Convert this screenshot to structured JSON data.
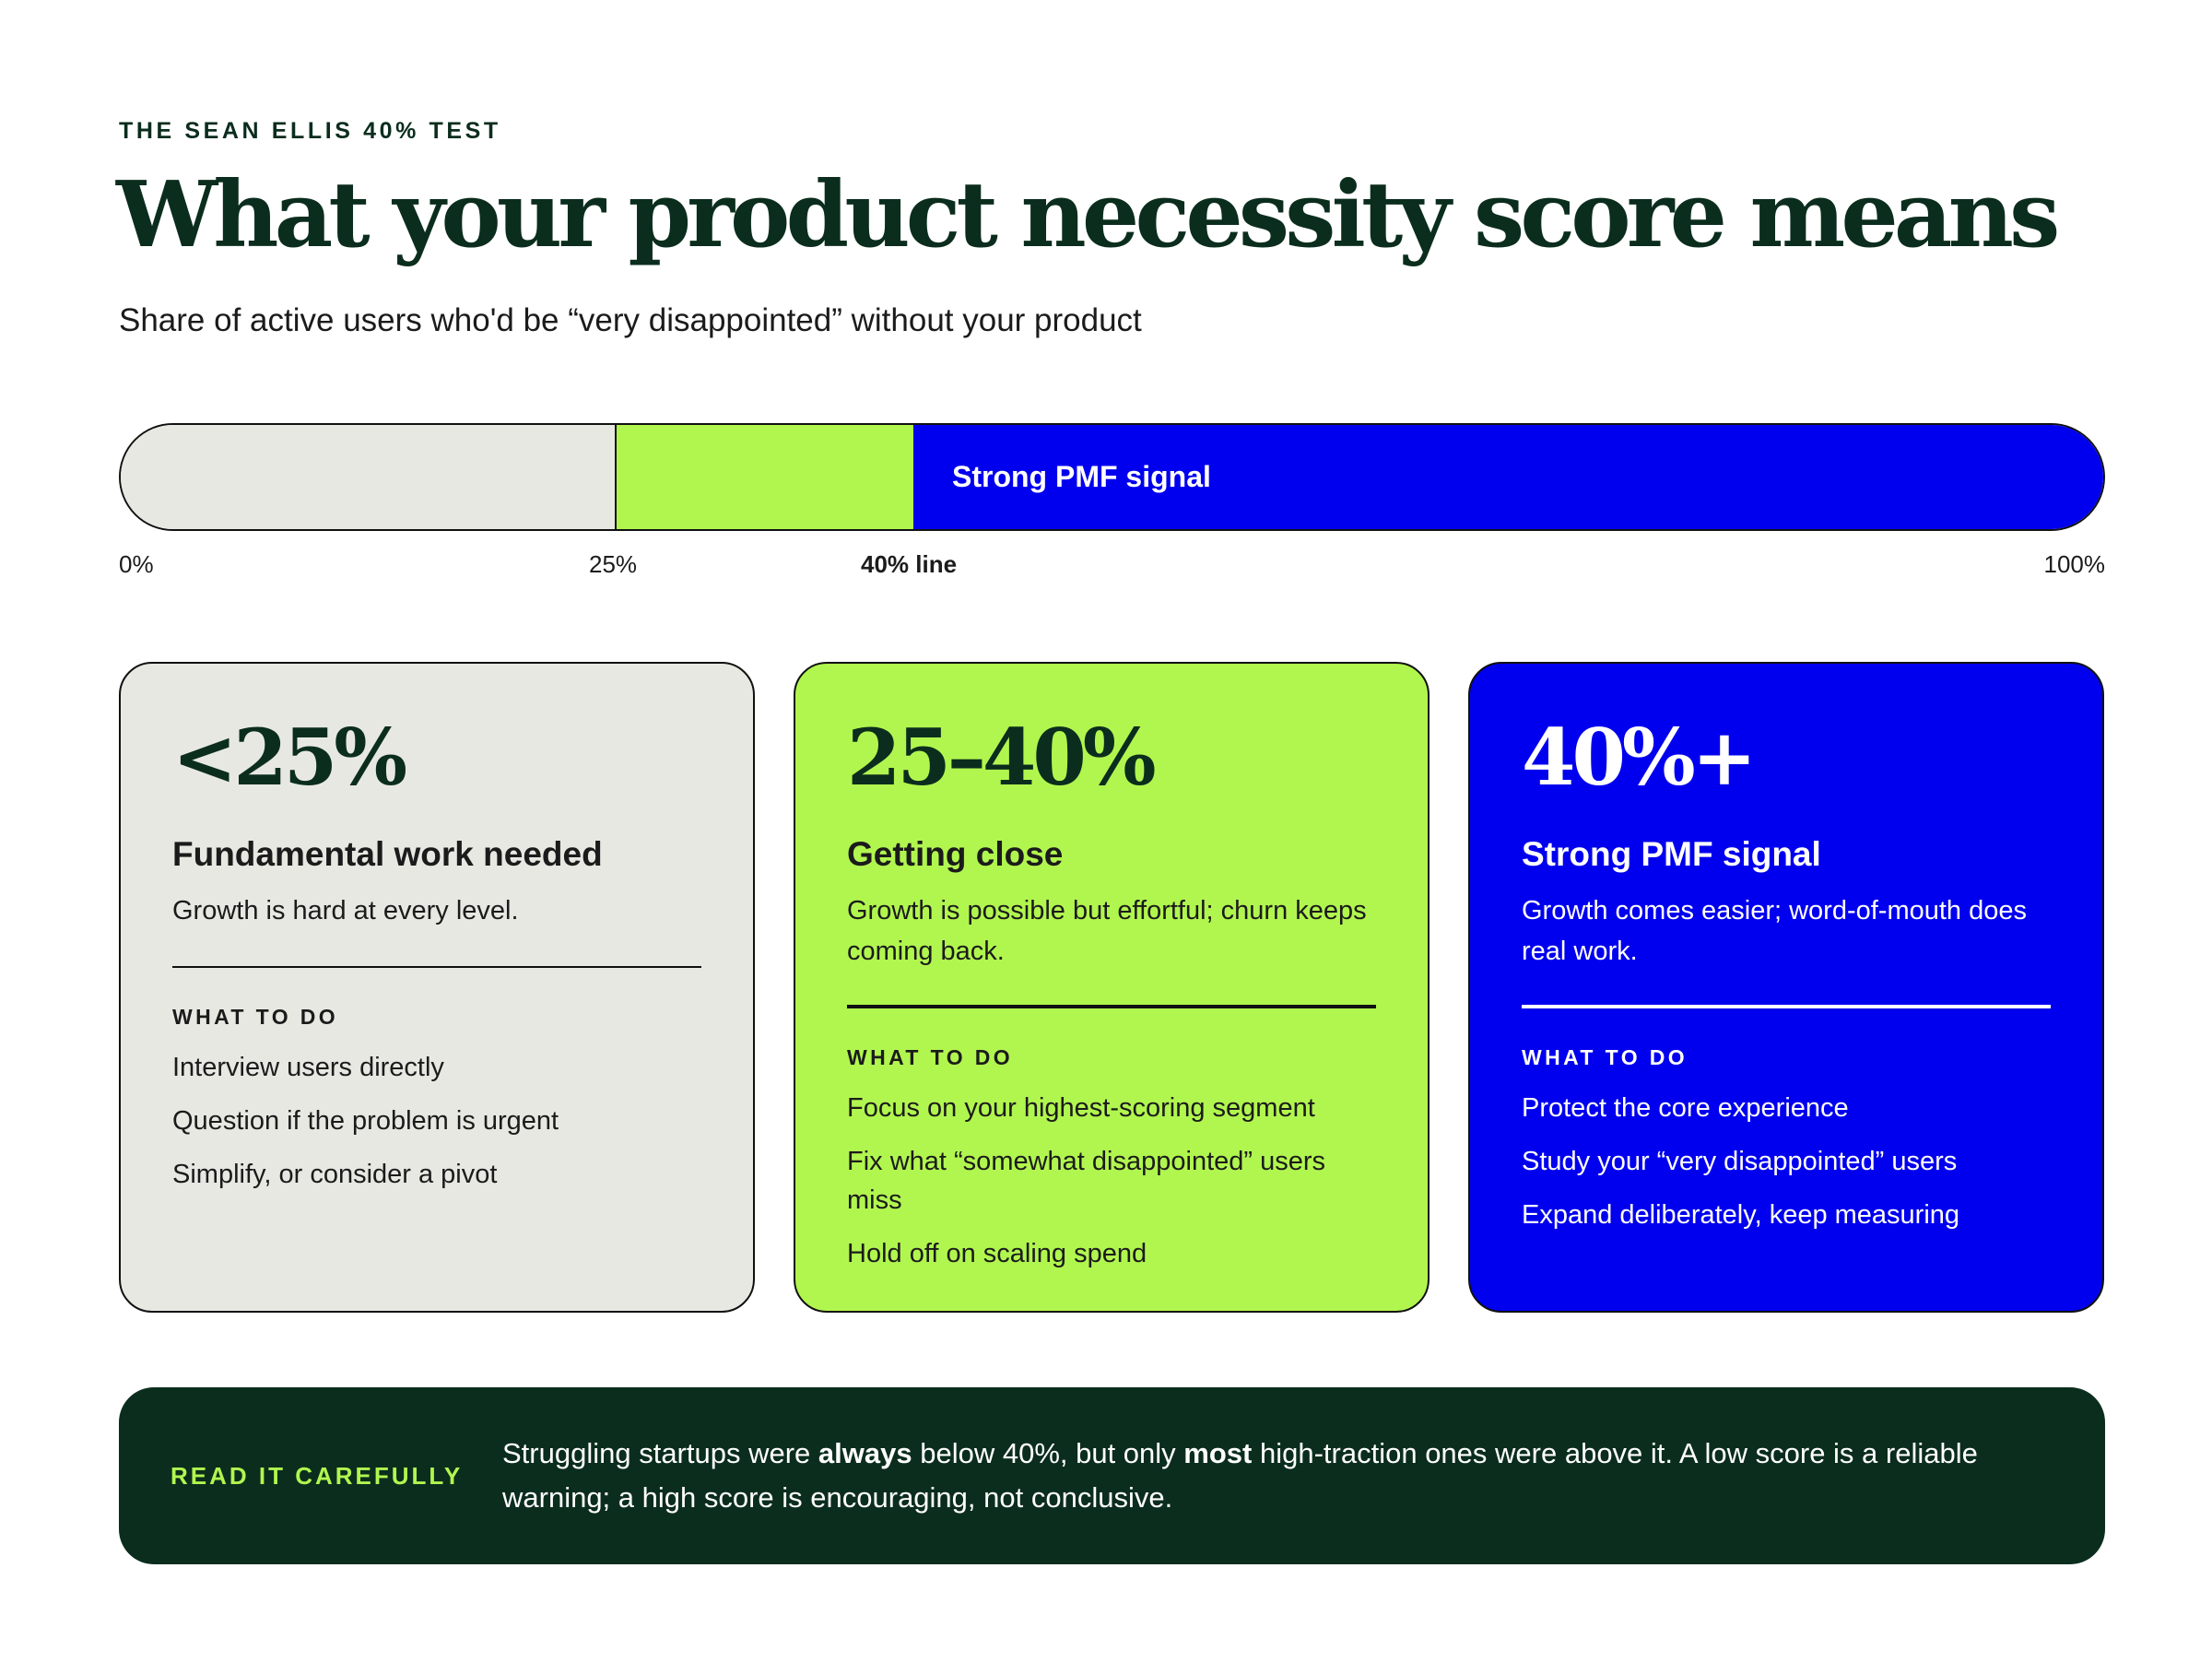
{
  "eyebrow": "THE SEAN ELLIS 40% TEST",
  "title": "What your product necessity score means",
  "subtitle": "Share of active users who'd be “very disappointed” without your product",
  "scale": {
    "segments": [
      {
        "from": 0,
        "to": 25,
        "color": "#e8e8e3",
        "label": ""
      },
      {
        "from": 25,
        "to": 40,
        "color": "#b1f64f",
        "label": ""
      },
      {
        "from": 40,
        "to": 100,
        "color": "#0000ee",
        "label": "Strong PMF signal"
      }
    ],
    "ticks": {
      "t0": "0%",
      "t25": "25%",
      "t40": "40% line",
      "t100": "100%"
    }
  },
  "cards": {
    "low": {
      "range": "<25%",
      "heading": "Fundamental work needed",
      "description": "Growth is hard at every level.",
      "todo_label": "WHAT TO DO",
      "items": [
        "Interview users directly",
        "Question if the problem is urgent",
        "Simplify, or consider a pivot"
      ]
    },
    "mid": {
      "range": "25–40%",
      "heading": "Getting close",
      "description": "Growth is possible but effortful; churn keeps coming back.",
      "todo_label": "WHAT TO DO",
      "items": [
        "Focus on your highest-scoring segment",
        "Fix what “somewhat disappointed” users miss",
        "Hold off on scaling spend"
      ]
    },
    "high": {
      "range": "40%+",
      "heading": "Strong PMF signal",
      "description": "Growth comes easier; word-of-mouth does real work.",
      "todo_label": "WHAT TO DO",
      "items": [
        "Protect the core experience",
        "Study your “very disappointed” users",
        "Expand deliberately, keep measuring"
      ]
    }
  },
  "note": {
    "label": "READ IT CAREFULLY",
    "text_1": "Struggling startups were ",
    "bold_1": "always",
    "text_2": " below 40%, but only ",
    "bold_2": "most",
    "text_3": " high-traction ones were above it. A low score is a reliable warning; a high score is encouraging, not conclusive."
  },
  "colors": {
    "ink": "#0b2d1d",
    "neutral": "#e8e8e3",
    "lime": "#b1f64f",
    "blue": "#0000ee"
  }
}
